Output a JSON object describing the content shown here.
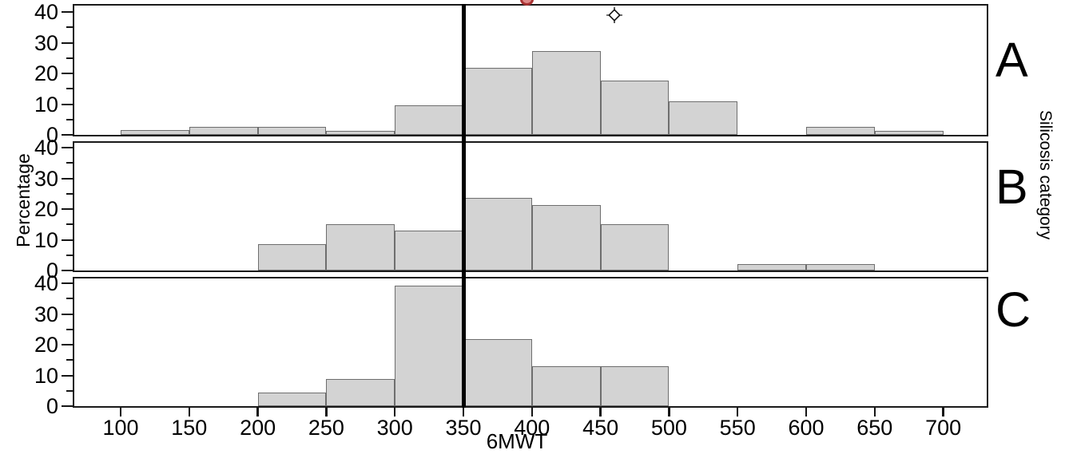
{
  "chart_data": {
    "type": "bar",
    "subtype": "histogram_small_multiples",
    "title": "",
    "xlabel": "6MWT",
    "ylabel": "Percentage",
    "panel_axis_label": "Silicosis category",
    "x_ticks": [
      100,
      150,
      200,
      250,
      300,
      350,
      400,
      450,
      500,
      550,
      600,
      650,
      700
    ],
    "y_ticks": [
      0,
      10,
      20,
      30,
      40
    ],
    "y_minor_ticks": [
      5,
      15,
      25,
      35
    ],
    "ylim": [
      0,
      40
    ],
    "bin_width": 50,
    "reference_line_x": 350,
    "grid": false,
    "legend": "none",
    "bar_fill": "#d3d3d3",
    "bar_border": "#6e6e6e",
    "frame_color": "#1a1a1a",
    "reference_line_color": "#000000",
    "red_glyph_border": "#a83232",
    "red_glyph_fill": "#dd8888",
    "panels": [
      {
        "label": "A",
        "bins": [
          {
            "start": 100,
            "end": 150,
            "value": 1.5
          },
          {
            "start": 150,
            "end": 200,
            "value": 2.7
          },
          {
            "start": 200,
            "end": 250,
            "value": 2.7
          },
          {
            "start": 250,
            "end": 300,
            "value": 1.3
          },
          {
            "start": 300,
            "end": 350,
            "value": 9.7
          },
          {
            "start": 350,
            "end": 400,
            "value": 21.8
          },
          {
            "start": 400,
            "end": 450,
            "value": 27.2
          },
          {
            "start": 450,
            "end": 500,
            "value": 17.6
          },
          {
            "start": 500,
            "end": 550,
            "value": 10.8
          },
          {
            "start": 600,
            "end": 650,
            "value": 2.7
          },
          {
            "start": 650,
            "end": 700,
            "value": 1.4
          }
        ],
        "outlier_point": {
          "x": 460,
          "y": 39
        }
      },
      {
        "label": "B",
        "bins": [
          {
            "start": 200,
            "end": 250,
            "value": 8.6
          },
          {
            "start": 250,
            "end": 300,
            "value": 15.0
          },
          {
            "start": 300,
            "end": 350,
            "value": 12.9
          },
          {
            "start": 350,
            "end": 400,
            "value": 23.7
          },
          {
            "start": 400,
            "end": 450,
            "value": 21.4
          },
          {
            "start": 450,
            "end": 500,
            "value": 15.0
          },
          {
            "start": 550,
            "end": 600,
            "value": 2.1
          },
          {
            "start": 600,
            "end": 650,
            "value": 2.1
          }
        ],
        "outlier_point": null
      },
      {
        "label": "C",
        "bins": [
          {
            "start": 200,
            "end": 250,
            "value": 4.5
          },
          {
            "start": 250,
            "end": 300,
            "value": 8.8
          },
          {
            "start": 300,
            "end": 350,
            "value": 39.3
          },
          {
            "start": 350,
            "end": 400,
            "value": 21.7
          },
          {
            "start": 400,
            "end": 450,
            "value": 13.0
          },
          {
            "start": 450,
            "end": 500,
            "value": 13.0
          }
        ],
        "outlier_point": null
      }
    ]
  }
}
